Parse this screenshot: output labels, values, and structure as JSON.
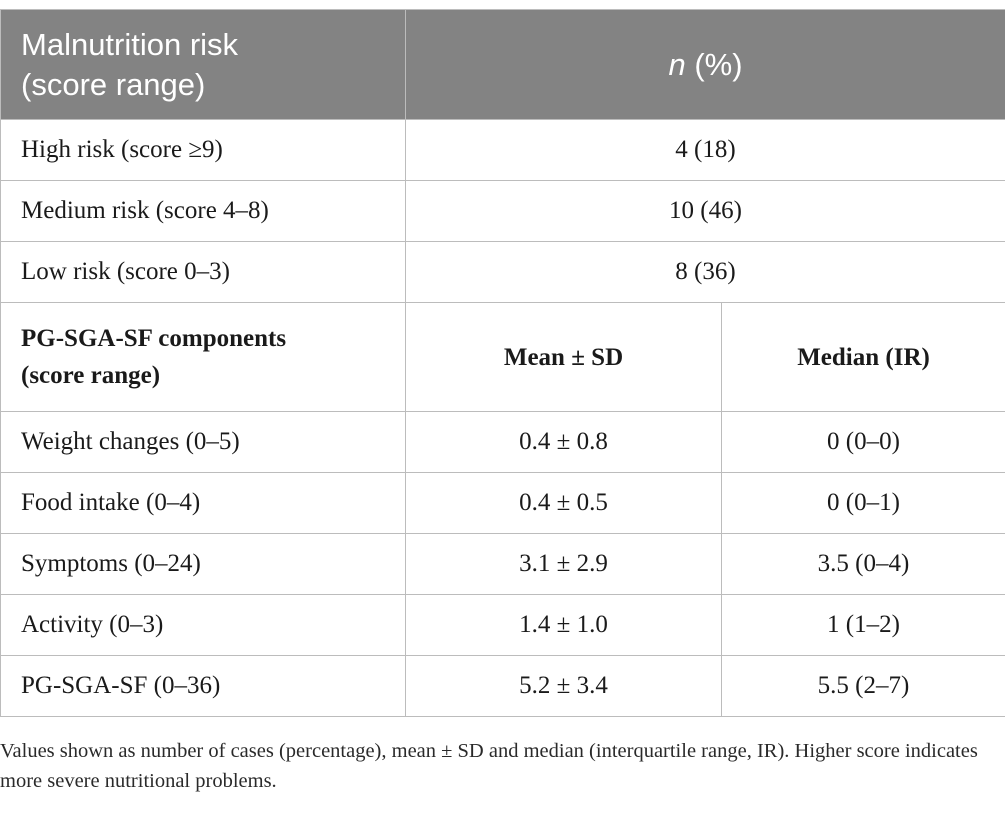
{
  "header": {
    "risk_label_line1": "Malnutrition risk",
    "risk_label_line2": "(score range)",
    "n_label": "n",
    "pct_label": " (%)"
  },
  "risk_rows": [
    {
      "label": "High risk (score ≥9)",
      "value": "4 (18)"
    },
    {
      "label": "Medium risk (score 4–8)",
      "value": "10 (46)"
    },
    {
      "label": "Low risk (score 0–3)",
      "value": "8 (36)"
    }
  ],
  "components_header": {
    "label_line1": "PG-SGA-SF components",
    "label_line2": "(score range)",
    "mean_label": "Mean ± SD",
    "median_label": "Median (IR)"
  },
  "component_rows": [
    {
      "label": "Weight changes (0–5)",
      "mean": "0.4 ± 0.8",
      "median": "0 (0–0)"
    },
    {
      "label": "Food intake (0–4)",
      "mean": "0.4 ± 0.5",
      "median": "0 (0–1)"
    },
    {
      "label": "Symptoms (0–24)",
      "mean": "3.1 ± 2.9",
      "median": "3.5 (0–4)"
    },
    {
      "label": "Activity (0–3)",
      "mean": "1.4 ± 1.0",
      "median": "1 (1–2)"
    },
    {
      "label": "PG-SGA-SF (0–36)",
      "mean": "5.2 ± 3.4",
      "median": "5.5 (2–7)"
    }
  ],
  "footnote": "Values shown as number of cases (percentage), mean ± SD and median (interquartile range, IR). Higher score indicates more severe nutritional problems."
}
